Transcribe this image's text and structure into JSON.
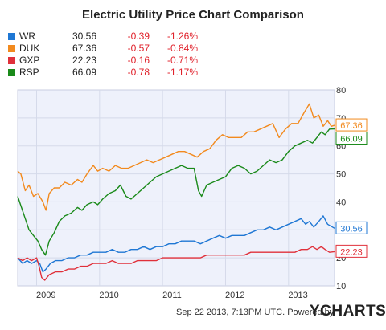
{
  "title": "Electric Utility Price Chart Comparison",
  "legend": [
    {
      "ticker": "WR",
      "price": "30.56",
      "change": "-0.39",
      "pct": "-1.26%",
      "color": "#1f77d4"
    },
    {
      "ticker": "DUK",
      "price": "67.36",
      "change": "-0.57",
      "pct": "-0.84%",
      "color": "#f28a1e"
    },
    {
      "ticker": "GXP",
      "price": "22.23",
      "change": "-0.16",
      "pct": "-0.71%",
      "color": "#e0303a"
    },
    {
      "ticker": "RSP",
      "price": "66.09",
      "change": "-0.78",
      "pct": "-1.17%",
      "color": "#1a8a1a"
    }
  ],
  "footer": {
    "timestamp": "Sep 22 2013, 7:13PM UTC.",
    "powered_by": "Powered by",
    "brand": "YCHARTS"
  },
  "chart_data": {
    "type": "line",
    "title": "Electric Utility Price Chart Comparison",
    "xlabel": "",
    "ylabel": "",
    "x_ticks": [
      "2009",
      "2010",
      "2011",
      "2012",
      "2013"
    ],
    "y_ticks": [
      10,
      20,
      30,
      40,
      50,
      60,
      70,
      80
    ],
    "xlim": [
      2008.7,
      2013.73
    ],
    "ylim": [
      10,
      80
    ],
    "grid": true,
    "plot_background": "#eef1fb",
    "end_labels": [
      "67.36",
      "66.09",
      "30.56",
      "22.23"
    ],
    "series": [
      {
        "name": "DUK",
        "color": "#f28a1e",
        "end_label": "67.36",
        "points": [
          [
            2008.7,
            51
          ],
          [
            2008.75,
            50
          ],
          [
            2008.82,
            44
          ],
          [
            2008.88,
            46
          ],
          [
            2008.95,
            42
          ],
          [
            2009.02,
            43
          ],
          [
            2009.1,
            40
          ],
          [
            2009.15,
            37
          ],
          [
            2009.2,
            43
          ],
          [
            2009.28,
            45
          ],
          [
            2009.36,
            45
          ],
          [
            2009.45,
            47
          ],
          [
            2009.55,
            46
          ],
          [
            2009.65,
            48
          ],
          [
            2009.72,
            47
          ],
          [
            2009.8,
            50
          ],
          [
            2009.9,
            53
          ],
          [
            2009.97,
            51
          ],
          [
            2010.05,
            52
          ],
          [
            2010.15,
            51
          ],
          [
            2010.25,
            53
          ],
          [
            2010.35,
            52
          ],
          [
            2010.45,
            52
          ],
          [
            2010.55,
            53
          ],
          [
            2010.65,
            54
          ],
          [
            2010.75,
            55
          ],
          [
            2010.85,
            54
          ],
          [
            2010.95,
            55
          ],
          [
            2011.05,
            56
          ],
          [
            2011.15,
            57
          ],
          [
            2011.25,
            58
          ],
          [
            2011.35,
            58
          ],
          [
            2011.45,
            57
          ],
          [
            2011.55,
            56
          ],
          [
            2011.65,
            58
          ],
          [
            2011.75,
            59
          ],
          [
            2011.85,
            62
          ],
          [
            2011.95,
            64
          ],
          [
            2012.05,
            63
          ],
          [
            2012.15,
            63
          ],
          [
            2012.25,
            63
          ],
          [
            2012.35,
            65
          ],
          [
            2012.45,
            65
          ],
          [
            2012.55,
            66
          ],
          [
            2012.65,
            67
          ],
          [
            2012.75,
            68
          ],
          [
            2012.85,
            63
          ],
          [
            2012.95,
            66
          ],
          [
            2013.05,
            68
          ],
          [
            2013.15,
            68
          ],
          [
            2013.25,
            72
          ],
          [
            2013.33,
            75
          ],
          [
            2013.4,
            70
          ],
          [
            2013.48,
            71
          ],
          [
            2013.55,
            67
          ],
          [
            2013.62,
            69
          ],
          [
            2013.68,
            67
          ],
          [
            2013.73,
            67.36
          ]
        ]
      },
      {
        "name": "RSP",
        "color": "#1a8a1a",
        "end_label": "66.09",
        "points": [
          [
            2008.7,
            42
          ],
          [
            2008.76,
            38
          ],
          [
            2008.82,
            34
          ],
          [
            2008.88,
            30
          ],
          [
            2008.95,
            28
          ],
          [
            2009.02,
            26
          ],
          [
            2009.08,
            23
          ],
          [
            2009.14,
            21
          ],
          [
            2009.2,
            26
          ],
          [
            2009.28,
            29
          ],
          [
            2009.36,
            33
          ],
          [
            2009.45,
            35
          ],
          [
            2009.55,
            36
          ],
          [
            2009.65,
            38
          ],
          [
            2009.72,
            37
          ],
          [
            2009.8,
            39
          ],
          [
            2009.9,
            40
          ],
          [
            2009.97,
            39
          ],
          [
            2010.05,
            41
          ],
          [
            2010.15,
            43
          ],
          [
            2010.25,
            44
          ],
          [
            2010.33,
            46
          ],
          [
            2010.42,
            42
          ],
          [
            2010.5,
            41
          ],
          [
            2010.6,
            43
          ],
          [
            2010.7,
            45
          ],
          [
            2010.8,
            47
          ],
          [
            2010.9,
            49
          ],
          [
            2011.0,
            50
          ],
          [
            2011.1,
            51
          ],
          [
            2011.2,
            52
          ],
          [
            2011.3,
            53
          ],
          [
            2011.4,
            52
          ],
          [
            2011.5,
            52
          ],
          [
            2011.57,
            44
          ],
          [
            2011.62,
            42
          ],
          [
            2011.7,
            46
          ],
          [
            2011.8,
            47
          ],
          [
            2011.9,
            48
          ],
          [
            2012.0,
            49
          ],
          [
            2012.1,
            52
          ],
          [
            2012.2,
            53
          ],
          [
            2012.3,
            52
          ],
          [
            2012.4,
            50
          ],
          [
            2012.5,
            51
          ],
          [
            2012.6,
            53
          ],
          [
            2012.7,
            55
          ],
          [
            2012.8,
            54
          ],
          [
            2012.9,
            55
          ],
          [
            2013.0,
            58
          ],
          [
            2013.1,
            60
          ],
          [
            2013.2,
            61
          ],
          [
            2013.3,
            62
          ],
          [
            2013.38,
            61
          ],
          [
            2013.45,
            63
          ],
          [
            2013.52,
            65
          ],
          [
            2013.58,
            64
          ],
          [
            2013.65,
            66
          ],
          [
            2013.73,
            66.09
          ]
        ]
      },
      {
        "name": "WR",
        "color": "#1f77d4",
        "end_label": "30.56",
        "points": [
          [
            2008.7,
            20
          ],
          [
            2008.78,
            18
          ],
          [
            2008.85,
            19
          ],
          [
            2008.92,
            18
          ],
          [
            2009.0,
            19
          ],
          [
            2009.05,
            18
          ],
          [
            2009.1,
            15
          ],
          [
            2009.15,
            16
          ],
          [
            2009.22,
            18
          ],
          [
            2009.3,
            19
          ],
          [
            2009.4,
            19
          ],
          [
            2009.5,
            20
          ],
          [
            2009.6,
            20
          ],
          [
            2009.7,
            21
          ],
          [
            2009.8,
            21
          ],
          [
            2009.9,
            22
          ],
          [
            2010.0,
            22
          ],
          [
            2010.1,
            22
          ],
          [
            2010.2,
            23
          ],
          [
            2010.3,
            22
          ],
          [
            2010.4,
            22
          ],
          [
            2010.5,
            23
          ],
          [
            2010.6,
            23
          ],
          [
            2010.7,
            24
          ],
          [
            2010.8,
            23
          ],
          [
            2010.9,
            24
          ],
          [
            2011.0,
            24
          ],
          [
            2011.1,
            25
          ],
          [
            2011.2,
            25
          ],
          [
            2011.3,
            26
          ],
          [
            2011.4,
            26
          ],
          [
            2011.5,
            26
          ],
          [
            2011.6,
            25
          ],
          [
            2011.7,
            26
          ],
          [
            2011.8,
            27
          ],
          [
            2011.9,
            28
          ],
          [
            2012.0,
            27
          ],
          [
            2012.1,
            28
          ],
          [
            2012.2,
            28
          ],
          [
            2012.3,
            28
          ],
          [
            2012.4,
            29
          ],
          [
            2012.5,
            30
          ],
          [
            2012.6,
            30
          ],
          [
            2012.7,
            31
          ],
          [
            2012.8,
            30
          ],
          [
            2012.9,
            31
          ],
          [
            2013.0,
            32
          ],
          [
            2013.1,
            33
          ],
          [
            2013.2,
            34
          ],
          [
            2013.27,
            32
          ],
          [
            2013.33,
            33
          ],
          [
            2013.4,
            31
          ],
          [
            2013.48,
            33
          ],
          [
            2013.55,
            35
          ],
          [
            2013.62,
            32
          ],
          [
            2013.73,
            30.56
          ]
        ]
      },
      {
        "name": "GXP",
        "color": "#e0303a",
        "end_label": "22.23",
        "points": [
          [
            2008.7,
            20
          ],
          [
            2008.78,
            19
          ],
          [
            2008.85,
            20
          ],
          [
            2008.92,
            19
          ],
          [
            2009.0,
            20
          ],
          [
            2009.04,
            17
          ],
          [
            2009.08,
            13
          ],
          [
            2009.13,
            12
          ],
          [
            2009.2,
            14
          ],
          [
            2009.3,
            15
          ],
          [
            2009.4,
            15
          ],
          [
            2009.5,
            16
          ],
          [
            2009.6,
            16
          ],
          [
            2009.7,
            17
          ],
          [
            2009.8,
            17
          ],
          [
            2009.9,
            18
          ],
          [
            2010.0,
            18
          ],
          [
            2010.1,
            18
          ],
          [
            2010.2,
            19
          ],
          [
            2010.3,
            18
          ],
          [
            2010.4,
            18
          ],
          [
            2010.5,
            18
          ],
          [
            2010.6,
            19
          ],
          [
            2010.7,
            19
          ],
          [
            2010.8,
            19
          ],
          [
            2010.9,
            19
          ],
          [
            2011.0,
            20
          ],
          [
            2011.1,
            20
          ],
          [
            2011.2,
            20
          ],
          [
            2011.3,
            20
          ],
          [
            2011.4,
            20
          ],
          [
            2011.5,
            20
          ],
          [
            2011.6,
            20
          ],
          [
            2011.7,
            21
          ],
          [
            2011.8,
            21
          ],
          [
            2011.9,
            21
          ],
          [
            2012.0,
            21
          ],
          [
            2012.1,
            21
          ],
          [
            2012.2,
            21
          ],
          [
            2012.3,
            21
          ],
          [
            2012.4,
            22
          ],
          [
            2012.5,
            22
          ],
          [
            2012.6,
            22
          ],
          [
            2012.7,
            22
          ],
          [
            2012.8,
            22
          ],
          [
            2012.9,
            22
          ],
          [
            2013.0,
            22
          ],
          [
            2013.1,
            22
          ],
          [
            2013.2,
            23
          ],
          [
            2013.3,
            23
          ],
          [
            2013.38,
            24
          ],
          [
            2013.45,
            23
          ],
          [
            2013.52,
            24
          ],
          [
            2013.58,
            23
          ],
          [
            2013.65,
            22
          ],
          [
            2013.73,
            22.23
          ]
        ]
      }
    ]
  }
}
